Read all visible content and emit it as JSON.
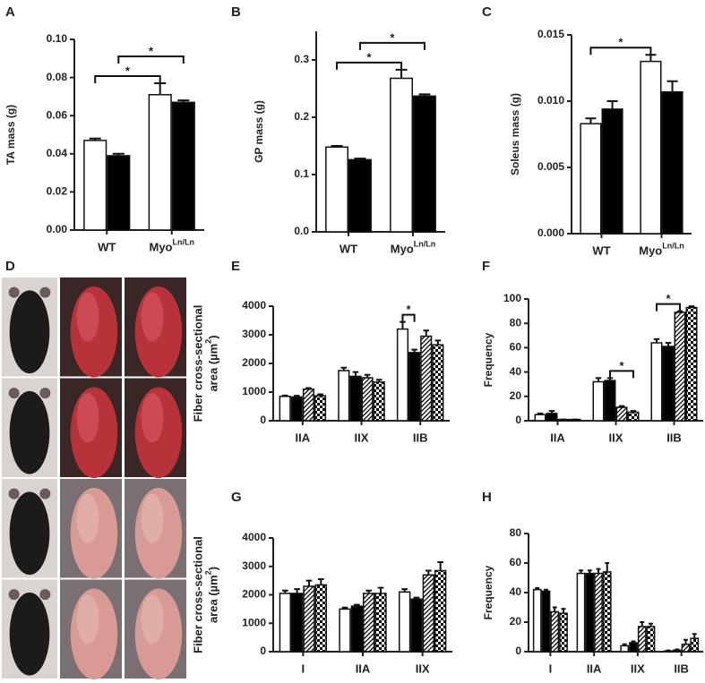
{
  "chart_data": [
    {
      "panel": "A",
      "type": "bar",
      "ylabel": "TA mass (g)",
      "categories": [
        "WT",
        "Myo"
      ],
      "category_superscripts": [
        null,
        "Ln/Ln"
      ],
      "series": [
        {
          "color": "#ffffff",
          "pattern": "solid",
          "values": [
            0.047,
            0.071
          ],
          "errors": [
            0.001,
            0.006
          ]
        },
        {
          "color": "#000000",
          "pattern": "solid",
          "values": [
            0.039,
            0.067
          ],
          "errors": [
            0.001,
            0.001
          ]
        }
      ],
      "ylim": [
        0,
        0.1
      ],
      "yticks": [
        {
          "value": 0,
          "label": "0.00"
        },
        {
          "value": 0.02,
          "label": "0.02"
        },
        {
          "value": 0.04,
          "label": "0.04"
        },
        {
          "value": 0.06,
          "label": "0.06"
        },
        {
          "value": 0.08,
          "label": "0.08"
        },
        {
          "value": 0.1,
          "label": "0.10"
        }
      ],
      "significance": [
        {
          "label": "*",
          "from": [
            0,
            0
          ],
          "to": [
            0,
            1
          ]
        },
        {
          "label": "*",
          "from": [
            1,
            0
          ],
          "to": [
            1,
            1
          ]
        }
      ]
    },
    {
      "panel": "B",
      "type": "bar",
      "ylabel": "GP mass (g)",
      "categories": [
        "WT",
        "Myo"
      ],
      "category_superscripts": [
        null,
        "Ln/Ln"
      ],
      "series": [
        {
          "color": "#ffffff",
          "pattern": "solid",
          "values": [
            0.148,
            0.268
          ],
          "errors": [
            0.002,
            0.015
          ]
        },
        {
          "color": "#000000",
          "pattern": "solid",
          "values": [
            0.126,
            0.237
          ],
          "errors": [
            0.002,
            0.003
          ]
        }
      ],
      "ylim": [
        0,
        0.35
      ],
      "yticks": [
        {
          "value": 0,
          "label": "0.0"
        },
        0.1,
        0.2,
        0.3
      ],
      "significance": [
        {
          "label": "*",
          "from": [
            0,
            0
          ],
          "to": [
            0,
            1
          ]
        },
        {
          "label": "*",
          "from": [
            1,
            0
          ],
          "to": [
            1,
            1
          ]
        }
      ]
    },
    {
      "panel": "C",
      "type": "bar",
      "ylabel": "Soleus mass (g)",
      "categories": [
        "WT",
        "Myo"
      ],
      "category_superscripts": [
        null,
        "Ln/Ln"
      ],
      "series": [
        {
          "color": "#ffffff",
          "pattern": "solid",
          "values": [
            0.0083,
            0.013
          ],
          "errors": [
            0.0004,
            0.0005
          ]
        },
        {
          "color": "#000000",
          "pattern": "solid",
          "values": [
            0.0094,
            0.0107
          ],
          "errors": [
            0.0006,
            0.0008
          ]
        }
      ],
      "ylim": [
        0,
        0.015
      ],
      "yticks": [
        {
          "value": 0,
          "label": "0.000"
        },
        {
          "value": 0.005,
          "label": "0.005"
        },
        {
          "value": 0.01,
          "label": "0.010"
        },
        0.015
      ],
      "significance": [
        {
          "label": "*",
          "from": [
            0,
            0
          ],
          "to": [
            0,
            1
          ]
        }
      ]
    },
    {
      "panel": "D",
      "type": "image"
    },
    {
      "panel": "E",
      "type": "bar",
      "ylabel": [
        "Fiber cross-sectional",
        "area (µm"
      ],
      "ylabel_sup": "2",
      "ylabel_end": ")",
      "categories": [
        "IIA",
        "IIX",
        "IIB"
      ],
      "series": [
        {
          "color": "#ffffff",
          "pattern": "solid",
          "values": [
            850,
            1750,
            3200
          ],
          "errors": [
            30,
            100,
            250
          ]
        },
        {
          "color": "#000000",
          "pattern": "solid",
          "values": [
            830,
            1550,
            2380
          ],
          "errors": [
            40,
            150,
            100
          ]
        },
        {
          "color": "#000000",
          "pattern": "hatch",
          "values": [
            1100,
            1500,
            2950
          ],
          "errors": [
            40,
            100,
            200
          ]
        },
        {
          "color": "#000000",
          "pattern": "check",
          "values": [
            870,
            1350,
            2650
          ],
          "errors": [
            50,
            80,
            150
          ]
        }
      ],
      "ylim": [
        0,
        4000
      ],
      "yticks": [
        0,
        1000,
        2000,
        3000,
        4000
      ],
      "significance": [
        {
          "label": "*",
          "from": [
            0,
            2
          ],
          "to": [
            1,
            2
          ]
        }
      ]
    },
    {
      "panel": "F",
      "type": "bar",
      "ylabel": "Frequency",
      "categories": [
        "IIA",
        "IIX",
        "IIB"
      ],
      "series": [
        {
          "color": "#ffffff",
          "pattern": "solid",
          "values": [
            5,
            32,
            64
          ],
          "errors": [
            1,
            3,
            3
          ]
        },
        {
          "color": "#000000",
          "pattern": "solid",
          "values": [
            6,
            33,
            61
          ],
          "errors": [
            2,
            2,
            3
          ]
        },
        {
          "color": "#000000",
          "pattern": "hatch",
          "values": [
            1,
            11,
            89
          ],
          "errors": [
            0,
            1,
            1
          ]
        },
        {
          "color": "#000000",
          "pattern": "check",
          "values": [
            1,
            7,
            93
          ],
          "errors": [
            0,
            1,
            1
          ]
        }
      ],
      "ylim": [
        0,
        100
      ],
      "yticks": [
        0,
        20,
        40,
        60,
        80,
        100
      ],
      "significance": [
        {
          "label": "*",
          "from": [
            1,
            1
          ],
          "to": [
            3,
            1
          ]
        },
        {
          "label": "*",
          "from": [
            0,
            2
          ],
          "to": [
            2,
            2
          ]
        }
      ]
    },
    {
      "panel": "G",
      "type": "bar",
      "ylabel": [
        "Fiber cross-sectional",
        "area (µm"
      ],
      "ylabel_sup": "2",
      "ylabel_end": ")",
      "categories": [
        "I",
        "IIA",
        "IIX"
      ],
      "series": [
        {
          "color": "#ffffff",
          "pattern": "solid",
          "values": [
            2050,
            1500,
            2100
          ],
          "errors": [
            100,
            50,
            100
          ]
        },
        {
          "color": "#000000",
          "pattern": "solid",
          "values": [
            2050,
            1600,
            1850
          ],
          "errors": [
            150,
            50,
            50
          ]
        },
        {
          "color": "#000000",
          "pattern": "hatch",
          "values": [
            2300,
            2050,
            2700
          ],
          "errors": [
            200,
            100,
            150
          ]
        },
        {
          "color": "#000000",
          "pattern": "check",
          "values": [
            2350,
            2050,
            2850
          ],
          "errors": [
            200,
            200,
            300
          ]
        }
      ],
      "ylim": [
        0,
        4000
      ],
      "yticks": [
        0,
        1000,
        2000,
        3000,
        4000
      ]
    },
    {
      "panel": "H",
      "type": "bar",
      "ylabel": "Frequency",
      "categories": [
        "I",
        "IIA",
        "IIX",
        "IIB"
      ],
      "series": [
        {
          "color": "#ffffff",
          "pattern": "solid",
          "values": [
            42,
            53,
            4,
            0.5
          ],
          "errors": [
            1,
            2,
            1,
            0.3
          ]
        },
        {
          "color": "#000000",
          "pattern": "solid",
          "values": [
            41,
            53,
            6,
            1
          ],
          "errors": [
            1,
            2,
            1,
            0.5
          ]
        },
        {
          "color": "#000000",
          "pattern": "hatch",
          "values": [
            27,
            53,
            17,
            5
          ],
          "errors": [
            3,
            3,
            3,
            3
          ]
        },
        {
          "color": "#000000",
          "pattern": "check",
          "values": [
            26,
            54,
            17,
            9
          ],
          "errors": [
            3,
            6,
            2,
            3
          ]
        }
      ],
      "ylim": [
        0,
        80
      ],
      "yticks": [
        0,
        20,
        40,
        60,
        80
      ]
    }
  ]
}
